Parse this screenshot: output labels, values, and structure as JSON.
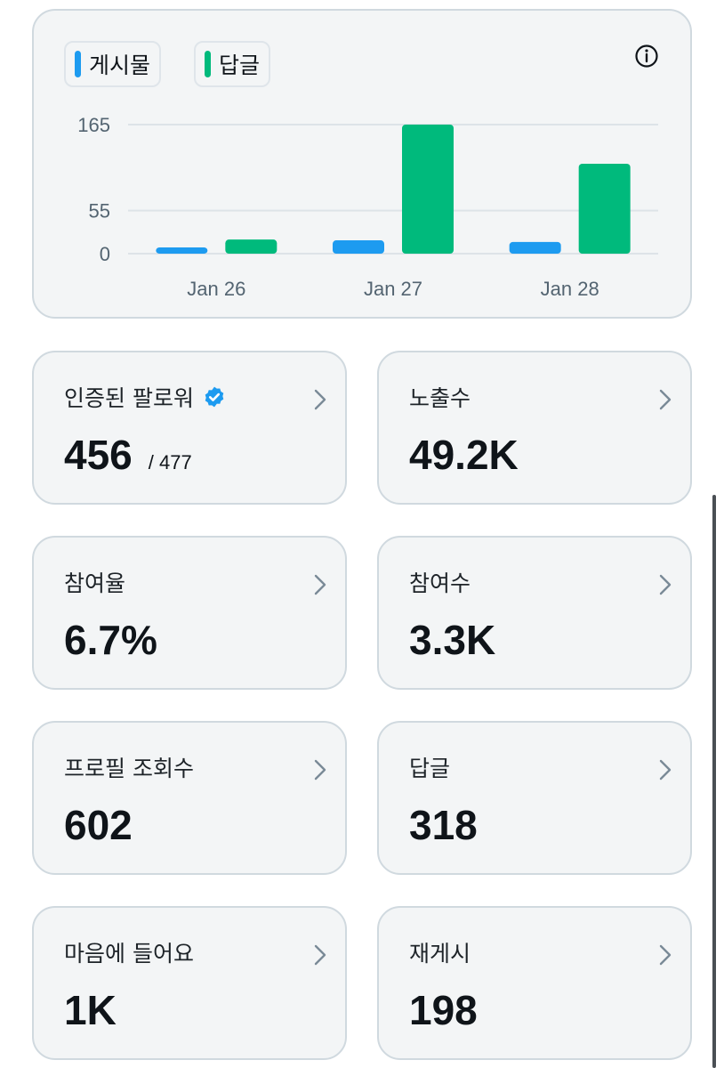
{
  "colors": {
    "posts": "#1d9bf0",
    "replies": "#00ba7c",
    "verified_badge": "#1d9bf0",
    "chevron": "#7a8a97"
  },
  "legend": {
    "posts_label": "게시물",
    "replies_label": "답글",
    "info_icon": "info-circle-icon"
  },
  "chart_data": {
    "type": "bar",
    "categories": [
      "Jan 26",
      "Jan 27",
      "Jan 28"
    ],
    "series": [
      {
        "name": "게시물",
        "values": [
          8,
          17,
          15
        ]
      },
      {
        "name": "답글",
        "values": [
          18,
          165,
          115
        ]
      }
    ],
    "yticks": [
      "165",
      "55",
      "0"
    ],
    "ylim": [
      0,
      165
    ],
    "grid": true,
    "legend_position": "top-left"
  },
  "metrics": {
    "verified_followers": {
      "label": "인증된 팔로워",
      "value": "456",
      "sub": "/ 477"
    },
    "impressions": {
      "label": "노출수",
      "value": "49.2K"
    },
    "engagement_rate": {
      "label": "참여율",
      "value": "6.7%"
    },
    "engagements": {
      "label": "참여수",
      "value": "3.3K"
    },
    "profile_visits": {
      "label": "프로필 조회수",
      "value": "602"
    },
    "replies": {
      "label": "답글",
      "value": "318"
    },
    "likes": {
      "label": "마음에 들어요",
      "value": "1K"
    },
    "reposts": {
      "label": "재게시",
      "value": "198"
    }
  }
}
